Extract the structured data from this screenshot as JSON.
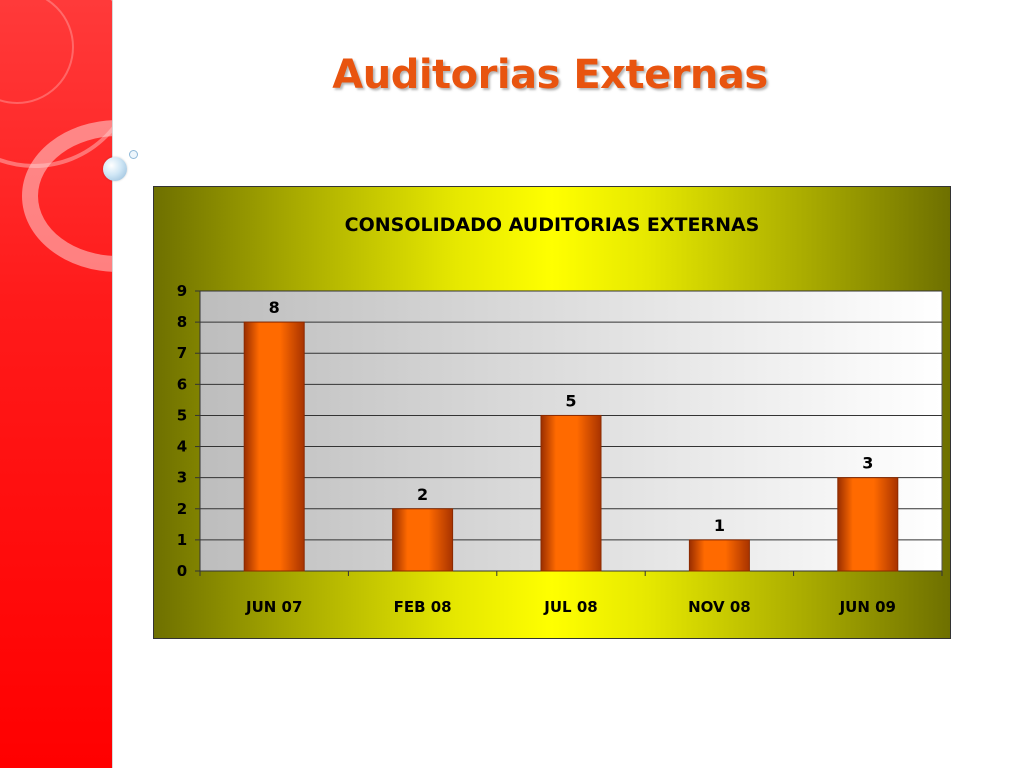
{
  "slide": {
    "title": "Auditorias Externas"
  },
  "theme": {
    "title_color": "#e8540f",
    "sidebar_color": "#ff1a1a",
    "bar_color": "#ff6600",
    "bar_edge_color": "#8a2a00"
  },
  "chart_data": {
    "type": "bar",
    "title": "CONSOLIDADO AUDITORIAS EXTERNAS",
    "categories": [
      "JUN 07",
      "FEB 08",
      "JUL 08",
      "NOV 08",
      "JUN 09"
    ],
    "values": [
      8,
      2,
      5,
      1,
      3
    ],
    "data_labels": [
      "8",
      "2",
      "5",
      "1",
      "3"
    ],
    "ylim": [
      0,
      9
    ],
    "yticks": [
      "0",
      "1",
      "2",
      "3",
      "4",
      "5",
      "6",
      "7",
      "8",
      "9"
    ],
    "xlabel": "",
    "ylabel": "",
    "grid": true,
    "legend": "none"
  }
}
